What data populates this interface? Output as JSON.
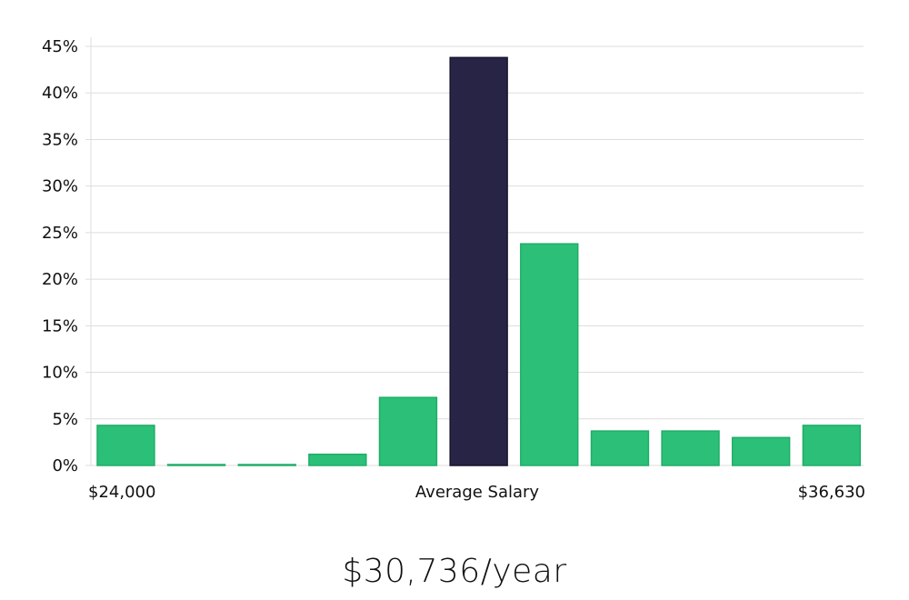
{
  "chart_data": {
    "type": "bar",
    "categories": [
      "1",
      "2",
      "3",
      "4",
      "5",
      "6",
      "7",
      "8",
      "9",
      "10",
      "11"
    ],
    "values": [
      4.3,
      0.1,
      0.1,
      1.2,
      7.3,
      43.8,
      23.8,
      3.7,
      3.7,
      3.0,
      4.3
    ],
    "highlight_index": 5,
    "ylim": [
      0,
      45
    ],
    "yticks": [
      0,
      5,
      10,
      15,
      20,
      25,
      30,
      35,
      40,
      45
    ],
    "ytick_suffix": "%",
    "grid": true,
    "x_axis_labels": {
      "left": "$24,000",
      "center": "Average Salary",
      "right": "$36,630"
    },
    "colors": {
      "bar": "#2bbf77",
      "bar_stroke": "#1fae68",
      "highlight": "#272445",
      "highlight_stroke": "#17152e",
      "grid": "#dddddd"
    }
  },
  "salary_display": "$30,736/year"
}
